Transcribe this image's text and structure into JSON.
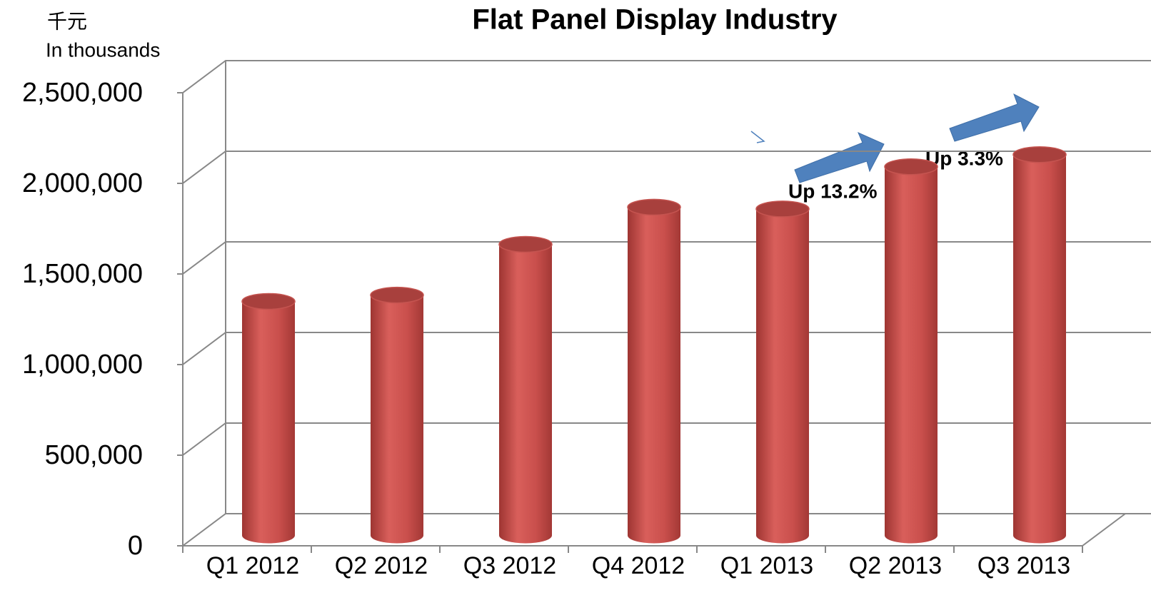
{
  "chart_data": {
    "type": "bar",
    "title": "Flat Panel Display Industry",
    "unit_label": "千元",
    "unit_label_en": "In thousands",
    "categories": [
      "Q1 2012",
      "Q2 2012",
      "Q3 2012",
      "Q4 2012",
      "Q1 2013",
      "Q2 2013",
      "Q3 2013"
    ],
    "values": [
      1260000,
      1295000,
      1575000,
      1780000,
      1770000,
      2003000,
      2070000
    ],
    "color": "#c94f4c",
    "ylim": [
      0,
      2500000
    ],
    "yticks": [
      0,
      {
        "value": 500000,
        "label": "500,000"
      },
      {
        "value": 1000000,
        "label": "1,000,000"
      },
      {
        "value": 1500000,
        "label": "1,500,000"
      },
      {
        "value": 2000000,
        "label": "2,000,000"
      },
      {
        "value": 2500000,
        "label": "2,500,000"
      }
    ],
    "grid": true,
    "annotations": [
      "Up 13.2%",
      "Up 3.3%"
    ]
  }
}
